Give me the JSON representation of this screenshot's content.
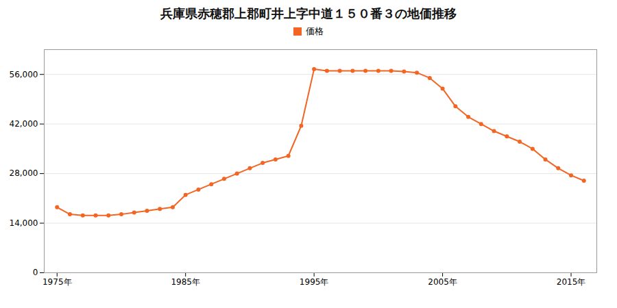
{
  "chart_data": {
    "type": "line",
    "title": "兵庫県赤穂郡上郡町井上字中道１５０番３の地価推移",
    "x": [
      1975,
      1976,
      1977,
      1978,
      1979,
      1980,
      1981,
      1982,
      1983,
      1984,
      1985,
      1986,
      1987,
      1988,
      1989,
      1990,
      1991,
      1992,
      1993,
      1994,
      1995,
      1996,
      1997,
      1998,
      1999,
      2000,
      2001,
      2002,
      2003,
      2004,
      2005,
      2006,
      2007,
      2008,
      2009,
      2010,
      2011,
      2012,
      2013,
      2014,
      2015,
      2016
    ],
    "series": [
      {
        "name": "価格",
        "color": "#F26522",
        "marker": "circle",
        "line_style": "solid",
        "values": [
          18500,
          16500,
          16200,
          16200,
          16200,
          16500,
          17000,
          17500,
          18000,
          18500,
          22000,
          23500,
          25000,
          26500,
          28000,
          29500,
          31000,
          32000,
          33000,
          41500,
          57500,
          57000,
          57000,
          57000,
          57000,
          57000,
          57000,
          56800,
          56500,
          55000,
          52000,
          47000,
          44000,
          42000,
          40000,
          38500,
          37000,
          35000,
          32000,
          29500,
          27500,
          26000
        ]
      }
    ],
    "xlim": [
      1974,
      2017
    ],
    "xticks": [
      {
        "value": 1975,
        "label": "1975年"
      },
      {
        "value": 1985,
        "label": "1985年"
      },
      {
        "value": 1995,
        "label": "1995年"
      },
      {
        "value": 2005,
        "label": "2005年"
      },
      {
        "value": 2015,
        "label": "2015年"
      }
    ],
    "ylim": [
      0,
      63000
    ],
    "yticks": [
      0,
      {
        "value": 14000,
        "label": "14,000"
      },
      {
        "value": 28000,
        "label": "28,000"
      },
      {
        "value": 42000,
        "label": "42,000"
      },
      {
        "value": 56000,
        "label": "56,000"
      }
    ],
    "grid": true,
    "legend": "top"
  }
}
